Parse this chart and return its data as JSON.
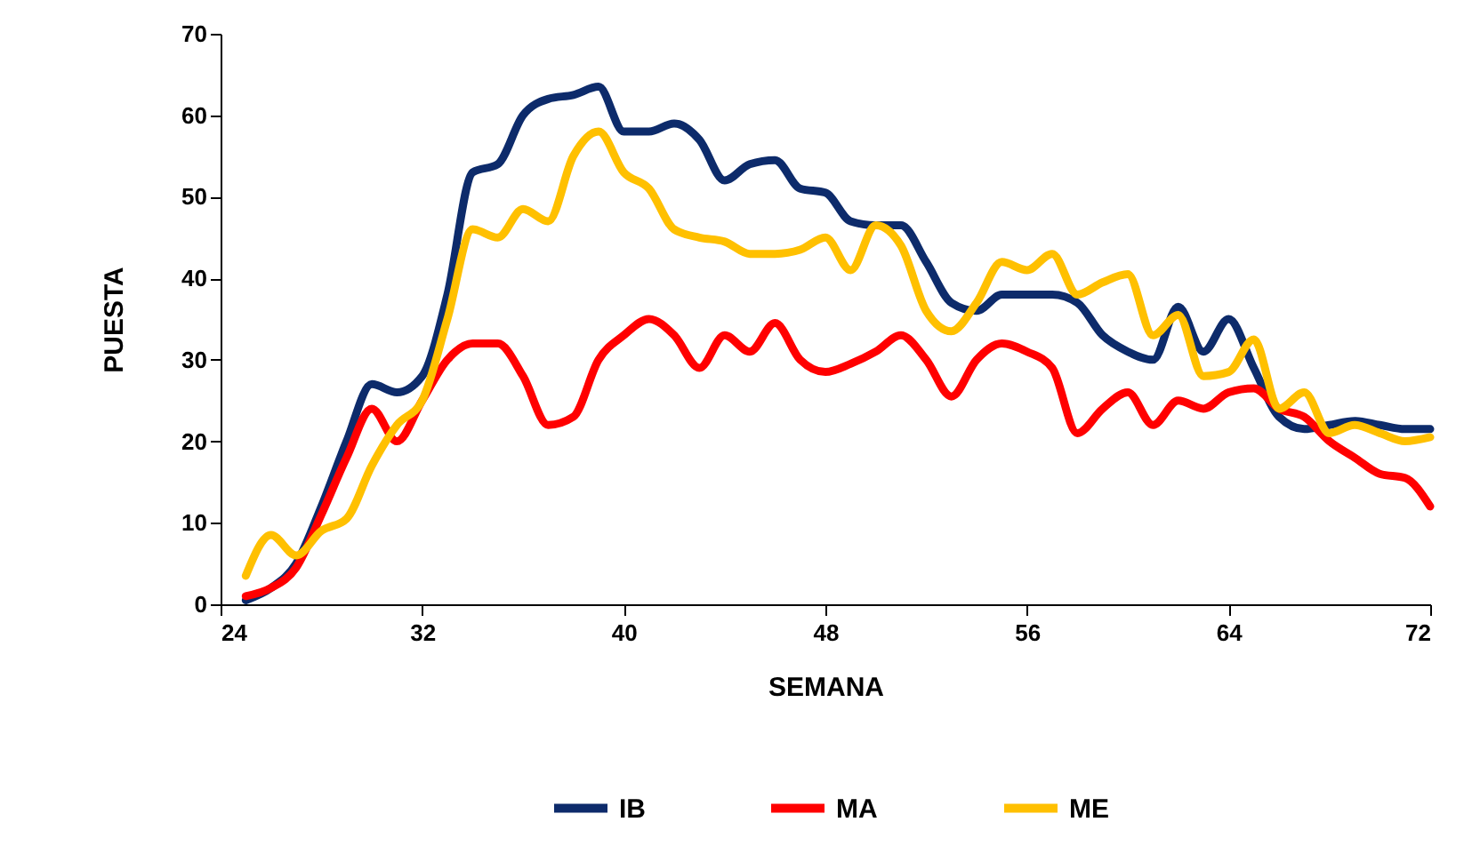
{
  "chart_data": {
    "type": "line",
    "xlabel": "SEMANA",
    "ylabel": "PUESTA",
    "x": [
      25,
      26,
      27,
      28,
      29,
      30,
      31,
      32,
      33,
      34,
      35,
      36,
      37,
      38,
      39,
      40,
      41,
      42,
      43,
      44,
      45,
      46,
      47,
      48,
      49,
      50,
      51,
      52,
      53,
      54,
      55,
      56,
      57,
      58,
      59,
      60,
      61,
      62,
      63,
      64,
      65,
      66,
      67,
      68,
      69,
      70,
      71,
      72
    ],
    "series": [
      {
        "name": "IB",
        "color": "#0d2b6b",
        "values": [
          0.5,
          2,
          5,
          12,
          20,
          27,
          26,
          28,
          38,
          53,
          54,
          60,
          62,
          62.5,
          63.5,
          58,
          58,
          59,
          57,
          52,
          54,
          54.5,
          51,
          50.5,
          47,
          46.5,
          46.5,
          42,
          37,
          36,
          38,
          38,
          38,
          37,
          33,
          31,
          30,
          36.5,
          31,
          35,
          29,
          23,
          21.5,
          22,
          22.5,
          22,
          21.5,
          21.5
        ]
      },
      {
        "name": "MA",
        "color": "#ff0000",
        "values": [
          1,
          2,
          4.5,
          11,
          18,
          24,
          20,
          25,
          30,
          32,
          32,
          28,
          22,
          23,
          30,
          33,
          35,
          33,
          29,
          33,
          31,
          34.5,
          30,
          28.5,
          29.5,
          31,
          33,
          30,
          25.5,
          30,
          32,
          31,
          29,
          21,
          24,
          26,
          22,
          25,
          24,
          26,
          26.5,
          24,
          23,
          20,
          18,
          16,
          15.5,
          12
        ]
      },
      {
        "name": "ME",
        "color": "#ffc000",
        "values": [
          3.5,
          8.5,
          6,
          9,
          10.5,
          17,
          22,
          25,
          35,
          46,
          45,
          48.5,
          47,
          55,
          58,
          53,
          51,
          46,
          45,
          44.5,
          43,
          43,
          43.5,
          45,
          41,
          46.5,
          44,
          36,
          33.5,
          37,
          42,
          41,
          43,
          38,
          39.5,
          40.5,
          33,
          35.5,
          28,
          28.5,
          32.5,
          24,
          26,
          21,
          22,
          21,
          20,
          20.5
        ]
      }
    ],
    "xlim": [
      24,
      72
    ],
    "xticks": [
      24,
      32,
      40,
      48,
      56,
      64,
      72
    ],
    "ylim": [
      0,
      70
    ],
    "yticks": [
      0,
      10,
      20,
      30,
      40,
      50,
      60,
      70
    ],
    "grid": false,
    "legend": "bottom",
    "marker": "none",
    "line_style": "solid"
  }
}
